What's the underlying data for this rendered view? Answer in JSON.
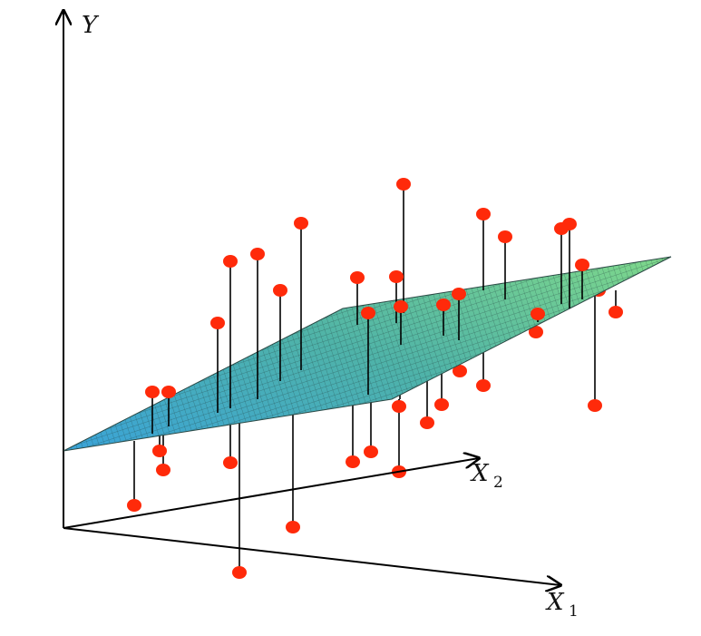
{
  "axes": {
    "y_label": "Y",
    "x1_label": "X",
    "x1_subscript": "1",
    "x2_label": "X",
    "x2_subscript": "2"
  },
  "plane": {
    "gradient_left": "#3aa3d8",
    "gradient_mid": "#4fb3a8",
    "gradient_right": "#7fd88a",
    "mesh_color": "#1f3b3a"
  },
  "points": {
    "fill": "#ff2a0a",
    "stem_color": "#000000",
    "count": 43
  }
}
